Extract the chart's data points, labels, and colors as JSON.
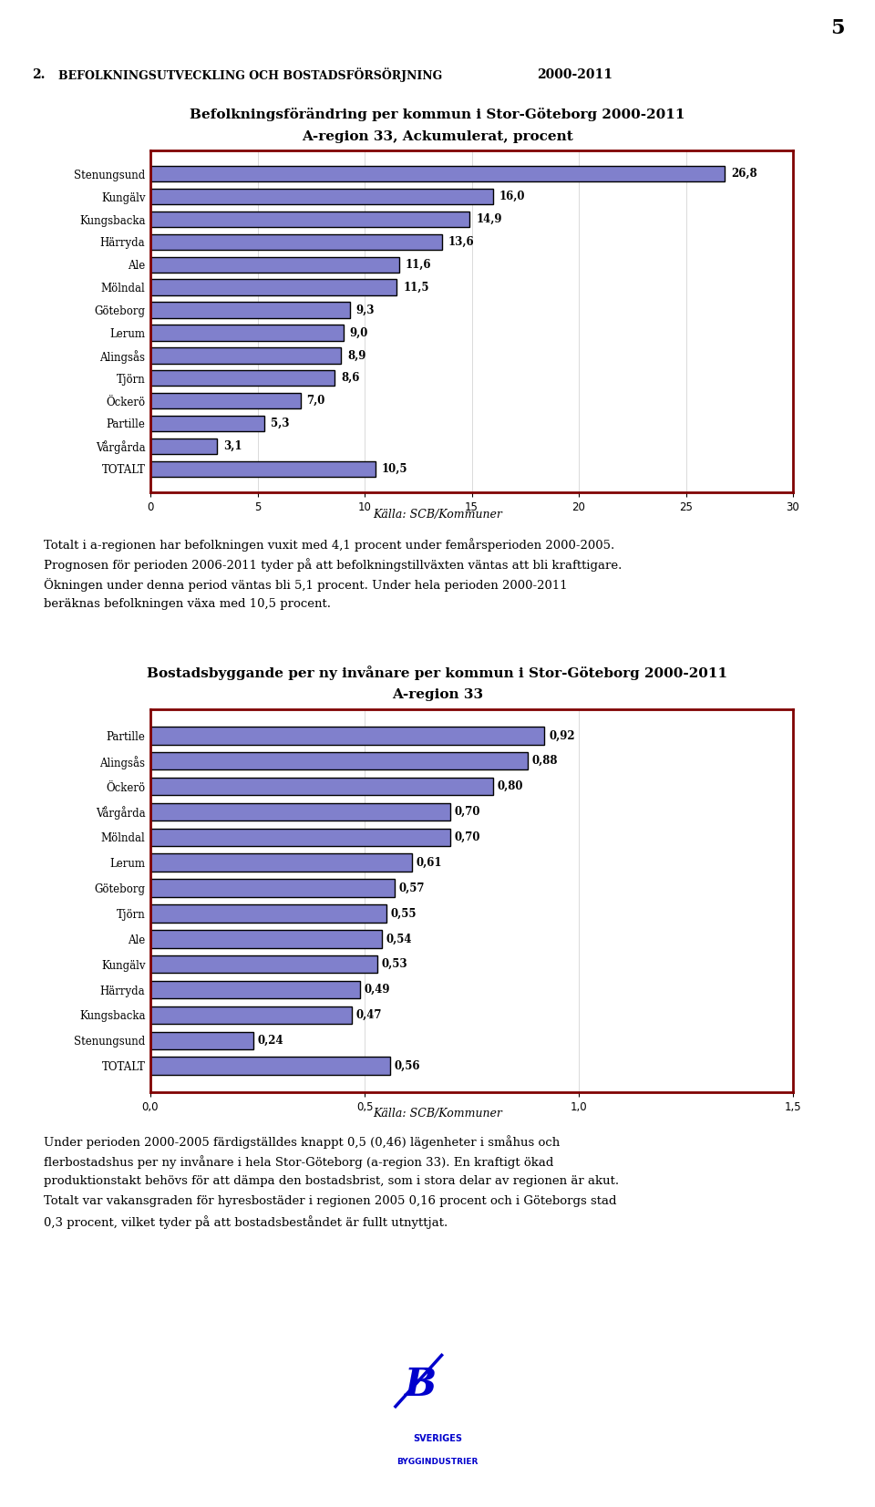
{
  "page_number": "5",
  "section_title_num": "2.",
  "section_title_text": "  BEFOLKNINGSUTVECKLING OCH BOSTADSFÖRSÖRJNING ",
  "section_title_year": "2000-2011",
  "chart1_title_line1": "Befolkningsförändring per kommun i Stor-Göteborg 2000-2011",
  "chart1_title_line2": "A-region 33, Ackumulerat, procent",
  "chart1_categories": [
    "Stenungsund",
    "Kungälv",
    "Kungsbacka",
    "Härryda",
    "Ale",
    "Mölndal",
    "Göteborg",
    "Lerum",
    "Alingsås",
    "Tjörn",
    "Öckerö",
    "Partille",
    "Vårgårda",
    "TOTALT"
  ],
  "chart1_values": [
    26.8,
    16.0,
    14.9,
    13.6,
    11.6,
    11.5,
    9.3,
    9.0,
    8.9,
    8.6,
    7.0,
    5.3,
    3.1,
    10.5
  ],
  "chart1_value_labels": [
    "26,8",
    "16,0",
    "14,9",
    "13,6",
    "11,6",
    "11,5",
    "9,3",
    "9,0",
    "8,9",
    "8,6",
    "7,0",
    "5,3",
    "3,1",
    "10,5"
  ],
  "chart1_xlim": [
    0,
    30
  ],
  "chart1_xticks": [
    0,
    5,
    10,
    15,
    20,
    25,
    30
  ],
  "chart1_bar_color": "#8080cc",
  "chart1_bar_edgecolor": "#000000",
  "chart1_source": "Källa: SCB/Kommuner",
  "para1_lines": [
    "Totalt i a-regionen har befolkningen vuxit med 4,1 procent under femårsperioden 2000-2005.",
    "Prognosen för perioden 2006-2011 tyder på att befolkningstillväxten väntas att bli krafttigare.",
    "Ökningen under denna period väntas bli 5,1 procent. Under hela perioden 2000-2011",
    "beräknas befolkningen växa med 10,5 procent."
  ],
  "chart2_title_line1": "Bostadsbyggande per ny invånare per kommun i Stor-Göteborg 2000-2011",
  "chart2_title_line2": "A-region 33",
  "chart2_categories": [
    "Partille",
    "Alingsås",
    "Öckerö",
    "Vårgårda",
    "Mölndal",
    "Lerum",
    "Göteborg",
    "Tjörn",
    "Ale",
    "Kungälv",
    "Härryda",
    "Kungsbacka",
    "Stenungsund",
    "TOTALT"
  ],
  "chart2_values": [
    0.92,
    0.88,
    0.8,
    0.7,
    0.7,
    0.61,
    0.57,
    0.55,
    0.54,
    0.53,
    0.49,
    0.47,
    0.24,
    0.56
  ],
  "chart2_value_labels": [
    "0,92",
    "0,88",
    "0,80",
    "0,70",
    "0,70",
    "0,61",
    "0,57",
    "0,55",
    "0,54",
    "0,53",
    "0,49",
    "0,47",
    "0,24",
    "0,56"
  ],
  "chart2_xlim": [
    0.0,
    1.5
  ],
  "chart2_xticks": [
    0.0,
    0.5,
    1.0,
    1.5
  ],
  "chart2_xtick_labels": [
    "0,0",
    "0,5",
    "1,0",
    "1,5"
  ],
  "chart2_bar_color": "#8080cc",
  "chart2_bar_edgecolor": "#000000",
  "chart2_source": "Källa: SCB/Kommuner",
  "para2_lines": [
    "Under perioden 2000-2005 färdigställdes knappt 0,5 (0,46) lägenheter i småhus och",
    "flerbostadshus per ny invånare i hela Stor-Göteborg (a-region 33). En kraftigt ökad",
    "produktionstakt behövs för att dämpa den bostadsbrist, som i stora delar av regionen är akut.",
    "Totalt var vakansgraden för hyresbostäder i regionen 2005 0,16 procent och i Göteborgs stad",
    "0,3 procent, vilket tyder på att bostadsbeståndet är fullt utnyttjat."
  ],
  "header_bg": "#c8c8e8",
  "box_bg": "#ffffff",
  "box_edgecolor": "#800000",
  "fig_bg": "#ffffff"
}
